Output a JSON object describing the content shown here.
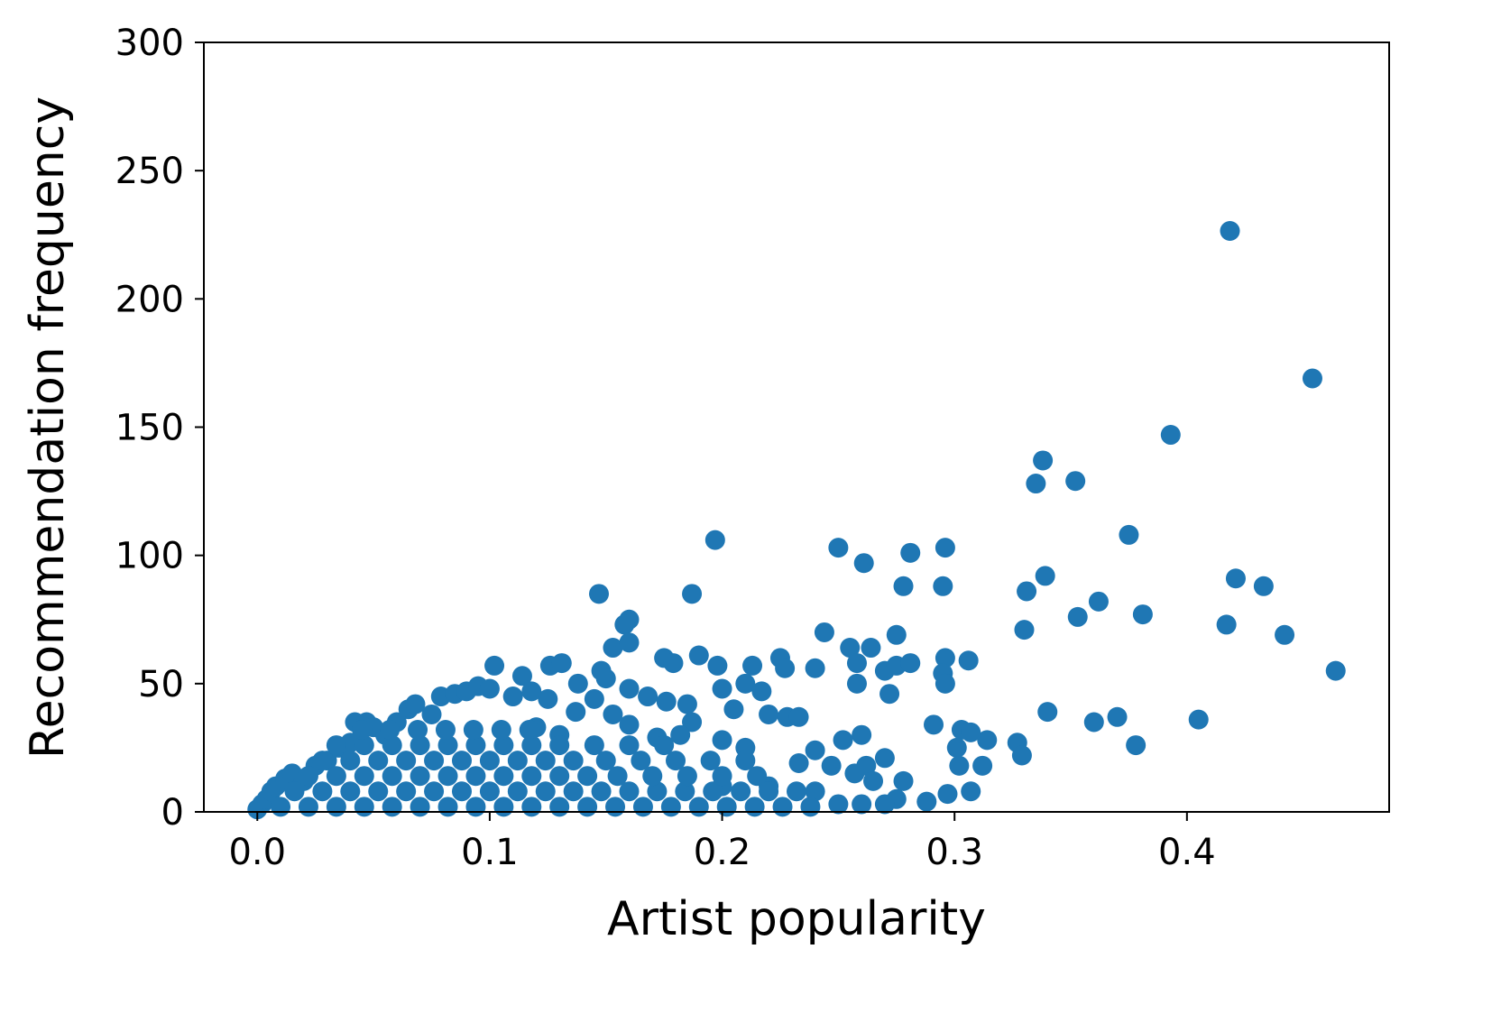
{
  "chart_data": {
    "type": "scatter",
    "title": "",
    "xlabel": "Artist popularity",
    "ylabel": "Recommendation frequency",
    "xlim": [
      -0.023,
      0.487
    ],
    "ylim": [
      0,
      300
    ],
    "xticks": [
      0.0,
      0.1,
      0.2,
      0.3,
      0.4
    ],
    "xtick_labels": [
      "0.0",
      "0.1",
      "0.2",
      "0.3",
      "0.4"
    ],
    "yticks": [
      0,
      50,
      100,
      150,
      200,
      250,
      300
    ],
    "ytick_labels": [
      "0",
      "50",
      "100",
      "150",
      "200",
      "250",
      "300"
    ],
    "grid": false,
    "marker_color": "#1f77b4",
    "points": [
      [
        0.4185,
        226.5
      ],
      [
        0.454,
        169
      ],
      [
        0.393,
        147
      ],
      [
        0.338,
        137
      ],
      [
        0.335,
        128
      ],
      [
        0.352,
        129
      ],
      [
        0.375,
        108
      ],
      [
        0.339,
        92
      ],
      [
        0.331,
        86
      ],
      [
        0.421,
        91
      ],
      [
        0.433,
        88
      ],
      [
        0.362,
        82
      ],
      [
        0.353,
        76
      ],
      [
        0.381,
        77
      ],
      [
        0.33,
        71
      ],
      [
        0.417,
        73
      ],
      [
        0.442,
        69
      ],
      [
        0.464,
        55
      ],
      [
        0.34,
        39
      ],
      [
        0.36,
        35
      ],
      [
        0.37,
        37
      ],
      [
        0.405,
        36
      ],
      [
        0.378,
        26
      ],
      [
        0.327,
        27
      ],
      [
        0.329,
        22
      ],
      [
        0.197,
        106
      ],
      [
        0.25,
        103
      ],
      [
        0.296,
        103
      ],
      [
        0.281,
        101
      ],
      [
        0.261,
        97
      ],
      [
        0.278,
        88
      ],
      [
        0.295,
        88
      ],
      [
        0.147,
        85
      ],
      [
        0.187,
        85
      ],
      [
        0.16,
        75
      ],
      [
        0.244,
        70
      ],
      [
        0.275,
        69
      ],
      [
        0.306,
        59
      ],
      [
        0.296,
        60
      ],
      [
        0.295,
        54
      ],
      [
        0.296,
        50
      ],
      [
        0.258,
        50
      ],
      [
        0.272,
        46
      ],
      [
        0.291,
        34
      ],
      [
        0.303,
        32
      ],
      [
        0.307,
        31
      ],
      [
        0.301,
        25
      ],
      [
        0.302,
        18
      ],
      [
        0.312,
        18
      ],
      [
        0.314,
        28
      ],
      [
        0.297,
        7
      ],
      [
        0.307,
        8
      ],
      [
        0.288,
        4
      ],
      [
        0.0,
        1
      ],
      [
        0.002,
        3
      ],
      [
        0.004,
        5
      ],
      [
        0.006,
        8
      ],
      [
        0.008,
        10
      ],
      [
        0.012,
        13
      ],
      [
        0.015,
        15
      ],
      [
        0.02,
        12
      ],
      [
        0.025,
        18
      ],
      [
        0.03,
        20
      ],
      [
        0.035,
        25
      ],
      [
        0.04,
        27
      ],
      [
        0.042,
        35
      ],
      [
        0.047,
        35
      ],
      [
        0.05,
        33
      ],
      [
        0.055,
        30
      ],
      [
        0.06,
        35
      ],
      [
        0.065,
        40
      ],
      [
        0.068,
        42
      ],
      [
        0.075,
        38
      ],
      [
        0.079,
        45
      ],
      [
        0.085,
        46
      ],
      [
        0.09,
        47
      ],
      [
        0.095,
        49
      ],
      [
        0.102,
        57
      ],
      [
        0.1,
        48
      ],
      [
        0.11,
        45
      ],
      [
        0.114,
        53
      ],
      [
        0.118,
        47
      ],
      [
        0.125,
        44
      ],
      [
        0.126,
        57
      ],
      [
        0.131,
        58
      ],
      [
        0.137,
        39
      ],
      [
        0.138,
        50
      ],
      [
        0.145,
        44
      ],
      [
        0.148,
        55
      ],
      [
        0.15,
        52
      ],
      [
        0.153,
        64
      ],
      [
        0.158,
        73
      ],
      [
        0.16,
        66
      ],
      [
        0.16,
        48
      ],
      [
        0.168,
        45
      ],
      [
        0.175,
        60
      ],
      [
        0.176,
        43
      ],
      [
        0.179,
        58
      ],
      [
        0.185,
        42
      ],
      [
        0.19,
        61
      ],
      [
        0.198,
        57
      ],
      [
        0.2,
        48
      ],
      [
        0.205,
        40
      ],
      [
        0.21,
        50
      ],
      [
        0.213,
        57
      ],
      [
        0.217,
        47
      ],
      [
        0.225,
        60
      ],
      [
        0.227,
        56
      ],
      [
        0.24,
        56
      ],
      [
        0.255,
        64
      ],
      [
        0.258,
        58
      ],
      [
        0.264,
        64
      ],
      [
        0.27,
        55
      ],
      [
        0.275,
        57
      ],
      [
        0.281,
        58
      ],
      [
        0.187,
        35
      ],
      [
        0.172,
        29
      ],
      [
        0.182,
        30
      ],
      [
        0.12,
        33
      ],
      [
        0.13,
        30
      ],
      [
        0.153,
        38
      ],
      [
        0.16,
        34
      ],
      [
        0.2,
        28
      ],
      [
        0.21,
        25
      ],
      [
        0.22,
        38
      ],
      [
        0.228,
        37
      ],
      [
        0.233,
        37
      ],
      [
        0.24,
        24
      ],
      [
        0.233,
        19
      ],
      [
        0.247,
        18
      ],
      [
        0.252,
        28
      ],
      [
        0.26,
        30
      ],
      [
        0.262,
        18
      ],
      [
        0.257,
        15
      ],
      [
        0.265,
        12
      ],
      [
        0.27,
        21
      ],
      [
        0.278,
        12
      ],
      [
        0.275,
        5
      ],
      [
        0.27,
        3
      ],
      [
        0.26,
        3
      ],
      [
        0.25,
        3
      ],
      [
        0.24,
        8
      ],
      [
        0.22,
        10
      ],
      [
        0.2,
        10
      ],
      [
        0.01,
        2
      ],
      [
        0.022,
        2
      ],
      [
        0.034,
        2
      ],
      [
        0.046,
        2
      ],
      [
        0.058,
        2
      ],
      [
        0.07,
        2
      ],
      [
        0.082,
        2
      ],
      [
        0.094,
        2
      ],
      [
        0.106,
        2
      ],
      [
        0.118,
        2
      ],
      [
        0.13,
        2
      ],
      [
        0.142,
        2
      ],
      [
        0.154,
        2
      ],
      [
        0.166,
        2
      ],
      [
        0.178,
        2
      ],
      [
        0.19,
        2
      ],
      [
        0.202,
        2
      ],
      [
        0.214,
        2
      ],
      [
        0.226,
        2
      ],
      [
        0.238,
        2
      ],
      [
        0.016,
        8
      ],
      [
        0.028,
        8
      ],
      [
        0.04,
        8
      ],
      [
        0.052,
        8
      ],
      [
        0.064,
        8
      ],
      [
        0.076,
        8
      ],
      [
        0.088,
        8
      ],
      [
        0.1,
        8
      ],
      [
        0.112,
        8
      ],
      [
        0.124,
        8
      ],
      [
        0.136,
        8
      ],
      [
        0.148,
        8
      ],
      [
        0.16,
        8
      ],
      [
        0.172,
        8
      ],
      [
        0.184,
        8
      ],
      [
        0.196,
        8
      ],
      [
        0.208,
        8
      ],
      [
        0.22,
        8
      ],
      [
        0.232,
        8
      ],
      [
        0.022,
        14
      ],
      [
        0.034,
        14
      ],
      [
        0.046,
        14
      ],
      [
        0.058,
        14
      ],
      [
        0.07,
        14
      ],
      [
        0.082,
        14
      ],
      [
        0.094,
        14
      ],
      [
        0.106,
        14
      ],
      [
        0.118,
        14
      ],
      [
        0.13,
        14
      ],
      [
        0.142,
        14
      ],
      [
        0.155,
        14
      ],
      [
        0.17,
        14
      ],
      [
        0.185,
        14
      ],
      [
        0.2,
        14
      ],
      [
        0.215,
        14
      ],
      [
        0.028,
        20
      ],
      [
        0.04,
        20
      ],
      [
        0.052,
        20
      ],
      [
        0.064,
        20
      ],
      [
        0.076,
        20
      ],
      [
        0.088,
        20
      ],
      [
        0.1,
        20
      ],
      [
        0.112,
        20
      ],
      [
        0.124,
        20
      ],
      [
        0.136,
        20
      ],
      [
        0.15,
        20
      ],
      [
        0.165,
        20
      ],
      [
        0.18,
        20
      ],
      [
        0.195,
        20
      ],
      [
        0.21,
        20
      ],
      [
        0.034,
        26
      ],
      [
        0.046,
        26
      ],
      [
        0.058,
        26
      ],
      [
        0.07,
        26
      ],
      [
        0.082,
        26
      ],
      [
        0.094,
        26
      ],
      [
        0.106,
        26
      ],
      [
        0.118,
        26
      ],
      [
        0.13,
        26
      ],
      [
        0.145,
        26
      ],
      [
        0.16,
        26
      ],
      [
        0.175,
        26
      ],
      [
        0.045,
        32
      ],
      [
        0.057,
        32
      ],
      [
        0.069,
        32
      ],
      [
        0.081,
        32
      ],
      [
        0.093,
        32
      ],
      [
        0.105,
        32
      ],
      [
        0.117,
        32
      ]
    ]
  }
}
